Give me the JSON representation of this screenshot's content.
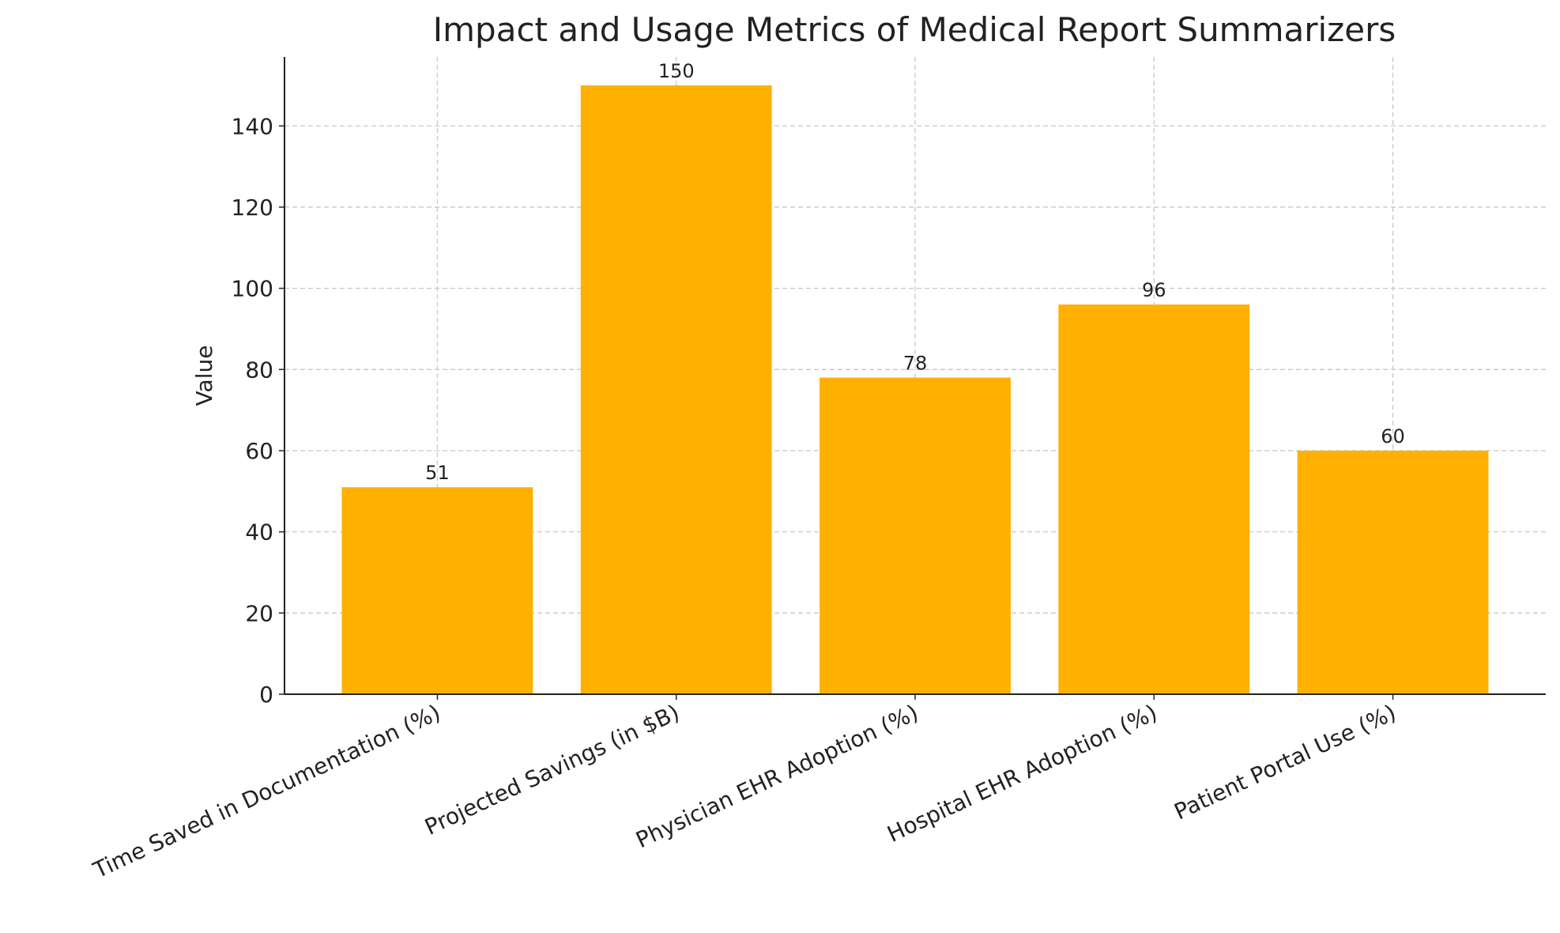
{
  "chart_data": {
    "type": "bar",
    "title": "Impact and Usage Metrics of Medical Report Summarizers",
    "y_label": "Value",
    "categories": [
      "Time Saved in Documentation (%)",
      "Projected Savings (in $B)",
      "Physician EHR Adoption (%)",
      "Hospital EHR Adoption (%)",
      "Patient Portal Use (%)"
    ],
    "values": [
      51,
      150,
      78,
      96,
      60
    ],
    "color": "#ffb000",
    "ylim": [
      0,
      157
    ],
    "yticks": [
      0,
      20,
      40,
      60,
      80,
      100,
      120,
      140
    ],
    "grid": true
  }
}
